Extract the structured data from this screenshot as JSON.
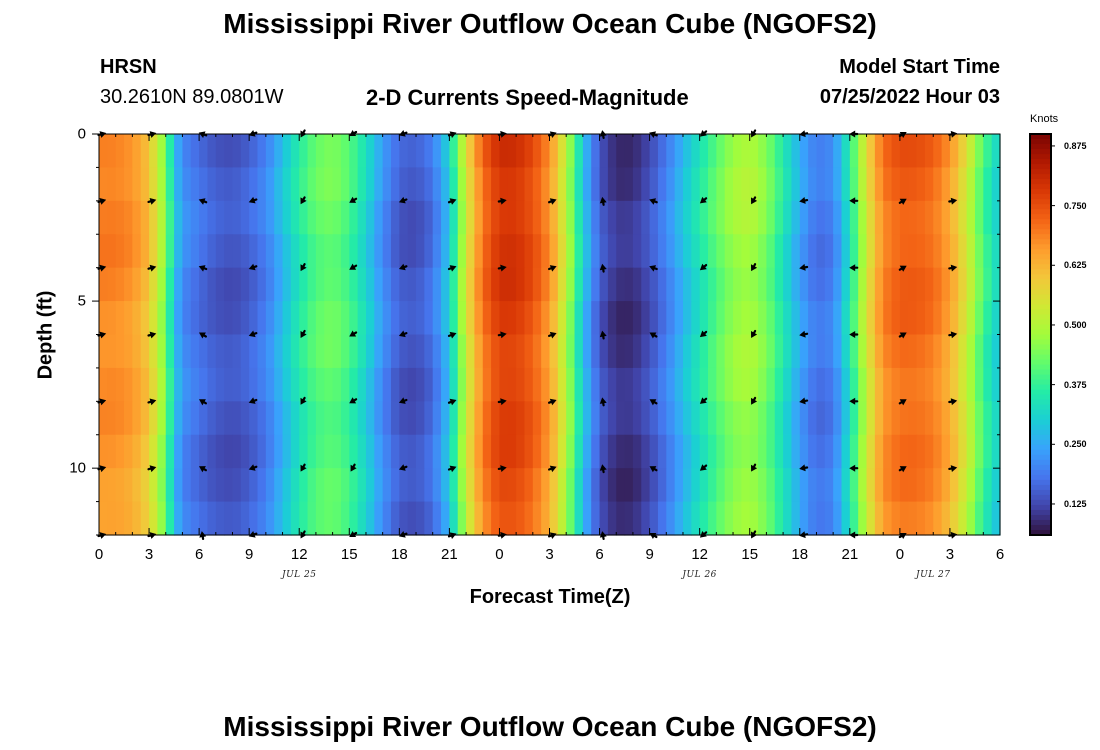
{
  "page_title": "Mississippi River Outflow Ocean Cube (NGOFS2)",
  "station": {
    "name": "HRSN",
    "coords": "30.2610N  89.0801W"
  },
  "plot_title": "2-D Currents Speed-Magnitude",
  "model": {
    "label": "Model Start Time",
    "time": "07/25/2022 Hour 03"
  },
  "bottom_title": "Mississippi River Outflow Ocean Cube (NGOFS2)",
  "chart_data": {
    "type": "heatmap",
    "title": "2-D Currents Speed-Magnitude",
    "xlabel": "Forecast Time(Z)",
    "ylabel": "Depth (ft)",
    "x_unit": "forecast hours from 2022-07-25 00Z",
    "xlim": [
      0,
      54
    ],
    "ylim": [
      0,
      12
    ],
    "y_inverted": true,
    "x_tick_labels": [
      "0",
      "3",
      "6",
      "9",
      "12",
      "15",
      "18",
      "21",
      "0",
      "3",
      "6",
      "9",
      "12",
      "15",
      "18",
      "21",
      "0",
      "3",
      "6"
    ],
    "x_ticks": [
      0,
      3,
      6,
      9,
      12,
      15,
      18,
      21,
      24,
      27,
      30,
      33,
      36,
      39,
      42,
      45,
      48,
      51,
      54
    ],
    "date_labels": [
      {
        "text": "JUL 25",
        "x": 12
      },
      {
        "text": "JUL 26",
        "x": 36
      },
      {
        "text": "JUL 27",
        "x": 50
      }
    ],
    "y_ticks": [
      0,
      5,
      10
    ],
    "y_tick_labels": [
      "0",
      "5",
      "10"
    ],
    "colorbar": {
      "label": "Knots",
      "min": 0.06,
      "max": 0.9,
      "ticks": [
        0.125,
        0.25,
        0.375,
        0.5,
        0.625,
        0.75,
        0.875
      ],
      "tick_labels": [
        "0.125",
        "0.250",
        "0.375",
        "0.500",
        "0.625",
        "0.750",
        "0.875"
      ],
      "colors": [
        "#30123b",
        "#4145ab",
        "#4675ed",
        "#39a2fc",
        "#1bcfd4",
        "#24eca6",
        "#61fc6c",
        "#a4fc3b",
        "#d1e834",
        "#f3c63a",
        "#fe9b2d",
        "#f36315",
        "#d93806",
        "#b11901",
        "#7a0403"
      ]
    },
    "speed_profile": {
      "x": [
        0,
        1,
        2,
        3,
        4,
        4.5,
        5,
        6,
        7,
        8,
        9,
        10,
        11,
        12,
        13,
        14,
        15,
        16,
        17,
        18,
        19,
        20,
        21,
        22,
        23,
        24,
        25,
        26,
        27,
        28,
        29,
        30,
        31,
        32,
        33,
        34,
        35,
        36,
        37,
        38,
        39,
        40,
        41,
        42,
        43,
        44,
        45,
        46,
        47,
        48,
        49,
        50,
        51,
        52,
        53,
        54
      ],
      "values": [
        0.7,
        0.7,
        0.68,
        0.62,
        0.45,
        0.3,
        0.22,
        0.18,
        0.15,
        0.14,
        0.16,
        0.2,
        0.28,
        0.36,
        0.42,
        0.44,
        0.4,
        0.32,
        0.22,
        0.15,
        0.14,
        0.18,
        0.3,
        0.55,
        0.72,
        0.8,
        0.8,
        0.76,
        0.68,
        0.52,
        0.3,
        0.15,
        0.1,
        0.1,
        0.14,
        0.2,
        0.28,
        0.35,
        0.42,
        0.48,
        0.5,
        0.45,
        0.35,
        0.25,
        0.18,
        0.2,
        0.35,
        0.55,
        0.7,
        0.74,
        0.74,
        0.72,
        0.66,
        0.55,
        0.4,
        0.3
      ]
    },
    "vectors": {
      "depths": [
        0,
        2,
        4,
        6,
        8,
        10,
        12
      ],
      "times": [
        0,
        3,
        6,
        9,
        12,
        15,
        18,
        21,
        24,
        27,
        30,
        33,
        36,
        39,
        42,
        45,
        48,
        51
      ],
      "directions_deg": [
        [
          75,
          75,
          -70,
          -110,
          -150,
          -120,
          -110,
          70,
          80,
          70,
          -10,
          -70,
          -130,
          -150,
          -100,
          -90,
          60,
          80
        ],
        [
          75,
          75,
          -70,
          -110,
          -150,
          -120,
          -110,
          70,
          80,
          70,
          -10,
          -70,
          -130,
          -150,
          -100,
          -90,
          60,
          80
        ],
        [
          75,
          75,
          -70,
          -110,
          -150,
          -120,
          -110,
          70,
          80,
          70,
          -10,
          -70,
          -130,
          -150,
          -100,
          -90,
          60,
          80
        ],
        [
          75,
          75,
          -60,
          -110,
          -150,
          -120,
          -110,
          70,
          80,
          70,
          -10,
          -60,
          -130,
          -150,
          -100,
          -90,
          60,
          80
        ],
        [
          75,
          75,
          -60,
          -110,
          -150,
          -120,
          -110,
          70,
          80,
          70,
          -10,
          -60,
          -130,
          -150,
          -100,
          -90,
          60,
          80
        ],
        [
          75,
          75,
          -60,
          -110,
          -150,
          -150,
          -110,
          70,
          80,
          70,
          -10,
          -60,
          -130,
          -150,
          -100,
          -90,
          60,
          80
        ],
        [
          75,
          75,
          -10,
          -110,
          -150,
          -120,
          -110,
          70,
          80,
          70,
          -10,
          -60,
          -130,
          -150,
          -100,
          -90,
          60,
          80
        ]
      ]
    },
    "grid": false,
    "legend": "colorbar-right"
  }
}
